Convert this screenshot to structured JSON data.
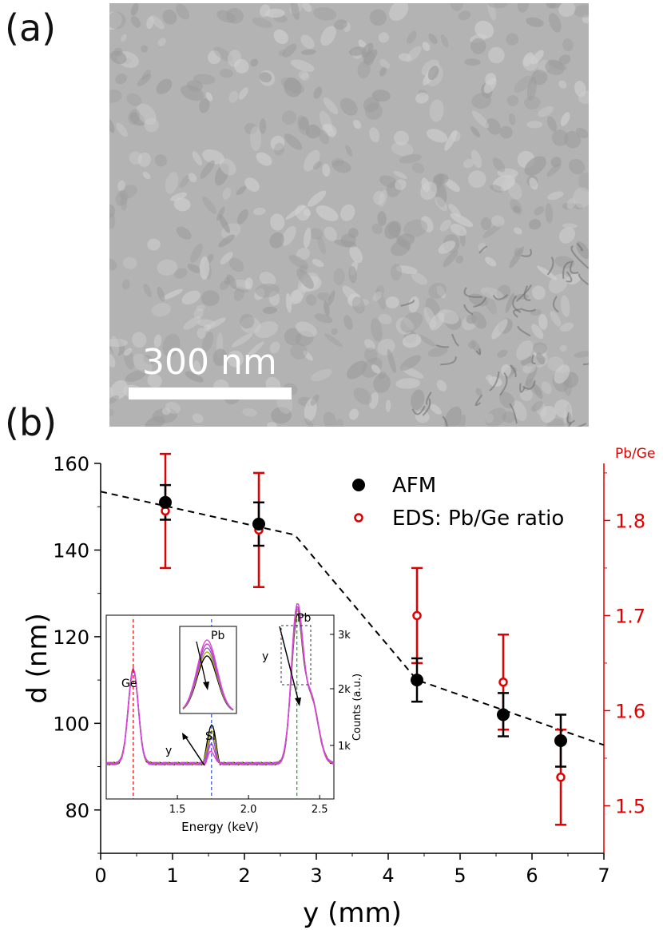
{
  "panels": {
    "a_label": "(a)",
    "b_label": "(b)"
  },
  "micrograph": {
    "scale_bar_label": "300 nm"
  },
  "colors": {
    "afm": "#000000",
    "eds": "#e00000",
    "fit_line": "#000000",
    "inset_traces": [
      "#000000",
      "#b5a800",
      "#7f5fcf",
      "#c040c0",
      "#e040e0"
    ]
  },
  "chart_data": [
    {
      "type": "scatter",
      "xlabel": "y (mm)",
      "ylabel": "d (nm)",
      "y2label": "Pb/Ge",
      "xlim": [
        0,
        7
      ],
      "ylim": [
        70,
        160
      ],
      "y2lim": [
        1.45,
        1.86
      ],
      "xticks": [
        0,
        1,
        2,
        3,
        4,
        5,
        6,
        7
      ],
      "yticks": [
        80,
        100,
        120,
        140,
        160
      ],
      "y2ticks": [
        1.5,
        1.6,
        1.7,
        1.8
      ],
      "legend_position": "top-right",
      "series": [
        {
          "name": "AFM",
          "axis": "left",
          "marker": "filled-circle",
          "x": [
            0.9,
            2.2,
            4.4,
            5.6,
            6.4
          ],
          "y": [
            151,
            146,
            110,
            102,
            96
          ],
          "err": [
            4,
            5,
            5,
            5,
            6
          ]
        },
        {
          "name": "EDS: Pb/Ge ratio",
          "axis": "right",
          "marker": "open-circle",
          "x": [
            0.9,
            2.2,
            4.4,
            5.6,
            6.4
          ],
          "y": [
            1.81,
            1.79,
            1.7,
            1.63,
            1.53
          ],
          "err": [
            0.06,
            0.06,
            0.05,
            0.05,
            0.05
          ]
        }
      ],
      "guide_line": {
        "style": "dashed",
        "x": [
          0,
          2.7,
          4.4,
          7
        ],
        "y": [
          153.5,
          143.5,
          110,
          95
        ]
      }
    },
    {
      "type": "line",
      "role": "inset",
      "xlabel": "Energy (keV)",
      "y2label": "Counts (a.u.)",
      "xlim": [
        1.0,
        2.6
      ],
      "xticks": [
        1.5,
        2.0,
        2.5
      ],
      "y2ticks": [
        "1k",
        "2k",
        "3k"
      ],
      "annotations": [
        "Ge",
        "Si",
        "Pb",
        "y",
        "y"
      ],
      "peaks": [
        {
          "label": "Ge",
          "energy": 1.19
        },
        {
          "label": "Si",
          "energy": 1.74
        },
        {
          "label": "Pb",
          "energy": 2.34
        }
      ],
      "zoom_inset_label": "Pb"
    }
  ]
}
